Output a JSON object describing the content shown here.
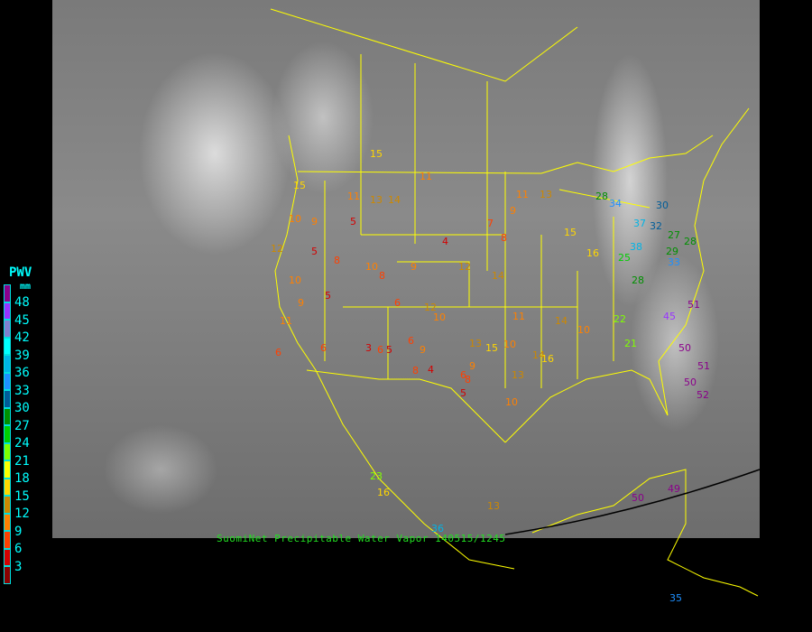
{
  "caption": "SuomiNet Precipitable Water Vapor 140515/1245",
  "legend": {
    "title": "PWV",
    "unit": "mm",
    "labels": [
      "48",
      "45",
      "42",
      "39",
      "36",
      "33",
      "30",
      "27",
      "24",
      "21",
      "18",
      "15",
      "12",
      "9",
      "6",
      "3"
    ],
    "colors": [
      "#8b008b",
      "#9933ff",
      "#8080d0",
      "#00ffff",
      "#00b4e6",
      "#1e90ff",
      "#005c99",
      "#009000",
      "#00d000",
      "#80ff00",
      "#ffff00",
      "#ffd700",
      "#cc8800",
      "#ff8000",
      "#ff4000",
      "#d40000",
      "#8b0000"
    ]
  },
  "stations": [
    "15",
    "14",
    "13",
    "11",
    "5",
    "10",
    "9",
    "8",
    "5",
    "4",
    "9",
    "7",
    "8",
    "11",
    "13",
    "9",
    "11",
    "10",
    "12",
    "14",
    "15",
    "16",
    "28",
    "28",
    "34",
    "37",
    "32",
    "33",
    "30",
    "27",
    "29",
    "28",
    "38",
    "25",
    "51",
    "45",
    "50",
    "51",
    "52",
    "50",
    "21",
    "22",
    "10",
    "8",
    "6",
    "5",
    "6",
    "3",
    "6",
    "5",
    "6",
    "8",
    "9",
    "4",
    "12",
    "10",
    "13",
    "15",
    "9",
    "10",
    "11",
    "14",
    "16",
    "13",
    "14",
    "23",
    "16",
    "36",
    "50",
    "49",
    "35",
    "13",
    "8",
    "6",
    "5",
    "10",
    "10",
    "9",
    "11",
    "15",
    "12",
    "6"
  ]
}
